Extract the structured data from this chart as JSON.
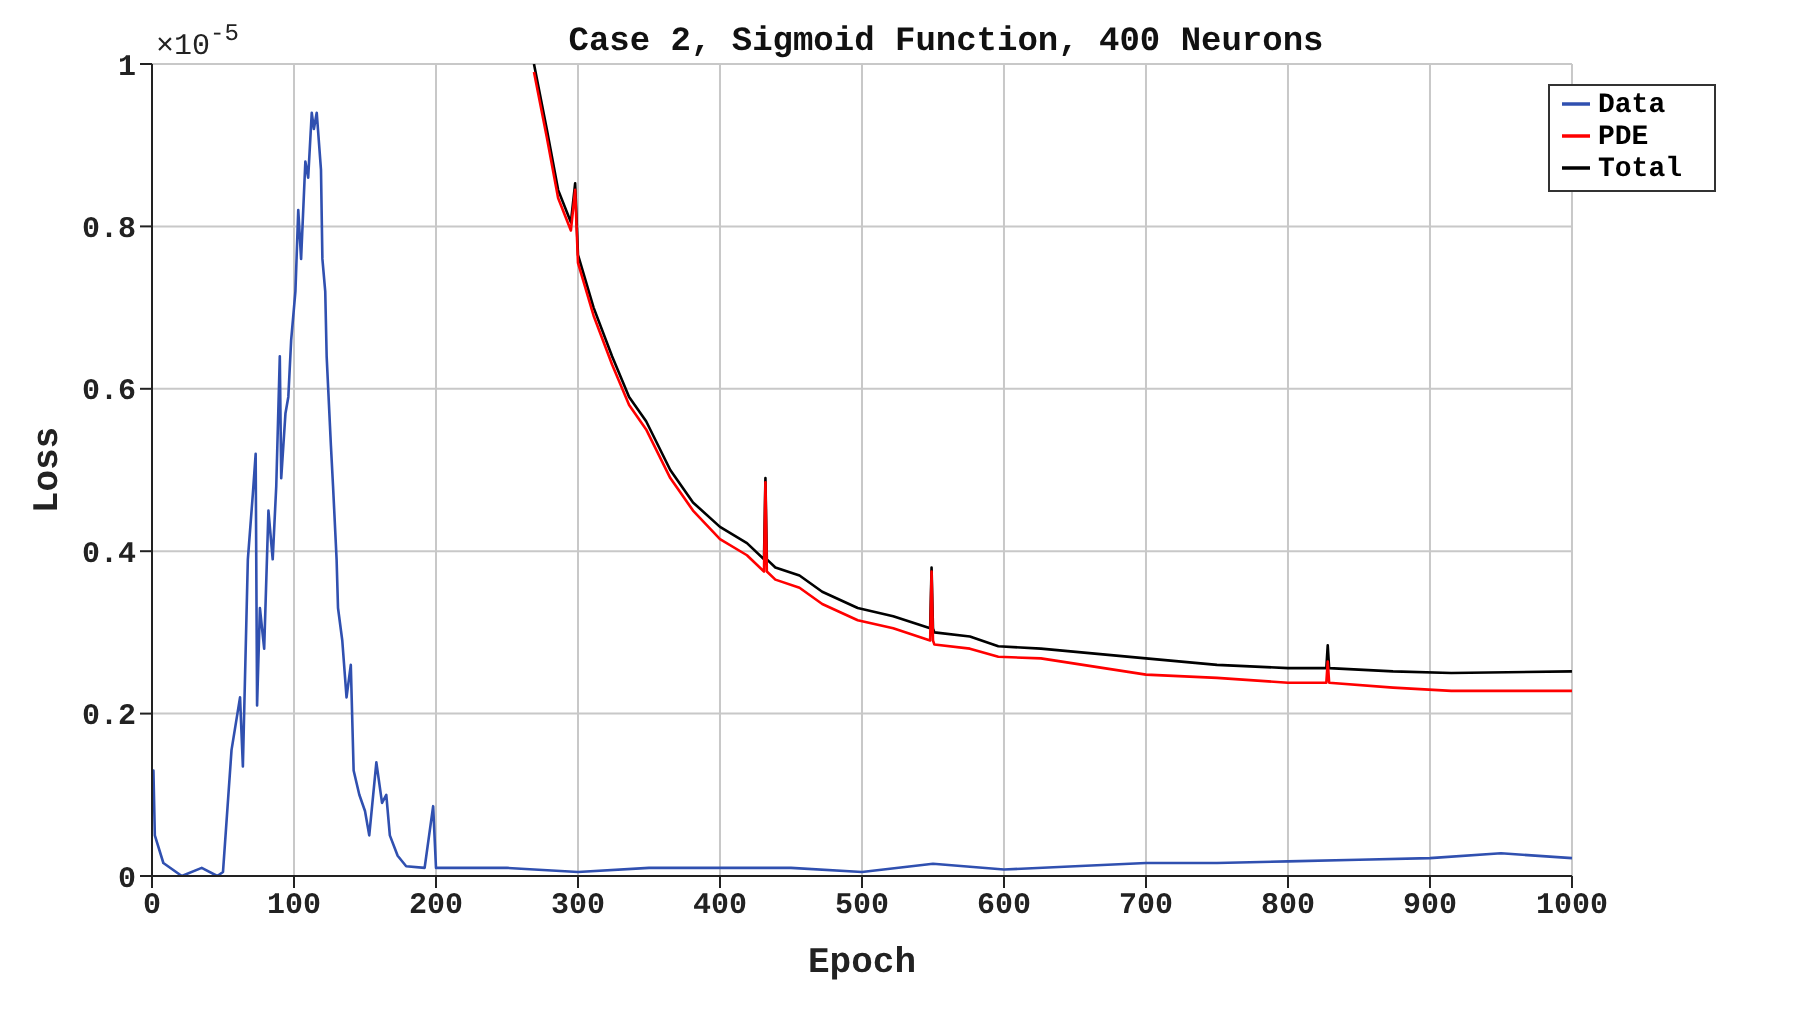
{
  "chart_data": {
    "type": "line",
    "title": "Case 2, Sigmoid Function, 400 Neurons",
    "xlabel": "Epoch",
    "ylabel": "Loss",
    "annotations": [
      "×10$^{-5}$"
    ],
    "xlim": [
      0,
      1000
    ],
    "xticks": [
      0,
      100,
      200,
      300,
      400,
      500,
      600,
      700,
      800,
      900,
      1000
    ],
    "ylim": [
      0,
      1
    ],
    "yticks": [
      0,
      0.2,
      0.4,
      0.6,
      0.8,
      1
    ],
    "grid": true,
    "legend": "top right",
    "series": [
      {
        "name": "Total",
        "color": "#000000",
        "x": [
          269,
          278,
          286,
          295,
          298,
          300,
          311,
          324,
          336,
          348,
          365,
          381,
          400,
          419,
          431,
          432,
          433,
          439,
          456,
          472,
          497,
          522,
          548,
          549,
          550,
          551,
          576,
          596,
          626,
          700,
          750,
          800,
          827,
          828,
          829,
          874,
          915,
          1000
        ],
        "values": [
          1.0,
          0.92,
          0.845,
          0.805,
          0.853,
          0.765,
          0.7,
          0.64,
          0.59,
          0.56,
          0.5,
          0.46,
          0.43,
          0.41,
          0.39,
          0.49,
          0.39,
          0.38,
          0.37,
          0.35,
          0.33,
          0.32,
          0.305,
          0.38,
          0.305,
          0.3,
          0.295,
          0.283,
          0.28,
          0.268,
          0.26,
          0.256,
          0.256,
          0.284,
          0.256,
          0.252,
          0.25,
          0.252
        ]
      },
      {
        "name": "PDE",
        "color": "#ff0000",
        "x": [
          269,
          278,
          286,
          295,
          298,
          300,
          311,
          324,
          336,
          348,
          365,
          381,
          400,
          419,
          431,
          432,
          433,
          439,
          456,
          472,
          497,
          522,
          548,
          549,
          550,
          551,
          576,
          596,
          626,
          700,
          750,
          800,
          827,
          828,
          829,
          874,
          915,
          1000
        ],
        "values": [
          0.99,
          0.91,
          0.835,
          0.795,
          0.845,
          0.755,
          0.69,
          0.63,
          0.58,
          0.55,
          0.49,
          0.45,
          0.415,
          0.395,
          0.375,
          0.485,
          0.375,
          0.365,
          0.355,
          0.335,
          0.315,
          0.305,
          0.29,
          0.375,
          0.29,
          0.285,
          0.28,
          0.27,
          0.268,
          0.248,
          0.244,
          0.238,
          0.238,
          0.264,
          0.238,
          0.232,
          0.228,
          0.228
        ]
      },
      {
        "name": "Data",
        "color": "#3050b0",
        "x": [
          0,
          1,
          2,
          8,
          21,
          35,
          46,
          50,
          56,
          62,
          64,
          67.5,
          71,
          73,
          74,
          76,
          79,
          82,
          85,
          87.5,
          90,
          91,
          94,
          96,
          98,
          101,
          103,
          105,
          108,
          110,
          112.5,
          114,
          116,
          119,
          120,
          122,
          123,
          126,
          127.5,
          130,
          131,
          134,
          137,
          140,
          142,
          146,
          150,
          153,
          158,
          162,
          165,
          167.5,
          173,
          179,
          192,
          198,
          200,
          250,
          300,
          350,
          400,
          450,
          500,
          550,
          600,
          650,
          700,
          750,
          800,
          850,
          900,
          950,
          1000
        ],
        "values": [
          0.13,
          0.13,
          0.05,
          0.016,
          0,
          0.01,
          0,
          0.005,
          0.155,
          0.22,
          0.135,
          0.39,
          0.47,
          0.52,
          0.21,
          0.33,
          0.28,
          0.45,
          0.39,
          0.48,
          0.64,
          0.49,
          0.57,
          0.59,
          0.66,
          0.72,
          0.82,
          0.76,
          0.88,
          0.86,
          0.94,
          0.92,
          0.94,
          0.87,
          0.76,
          0.72,
          0.64,
          0.53,
          0.48,
          0.39,
          0.33,
          0.29,
          0.22,
          0.26,
          0.13,
          0.1,
          0.08,
          0.05,
          0.14,
          0.09,
          0.1,
          0.05,
          0.025,
          0.012,
          0.01,
          0.086,
          0.01,
          0.01,
          0.005,
          0.01,
          0.01,
          0.01,
          0.005,
          0.015,
          0.008,
          0.012,
          0.016,
          0.016,
          0.018,
          0.02,
          0.022,
          0.028,
          0.022
        ]
      }
    ]
  }
}
